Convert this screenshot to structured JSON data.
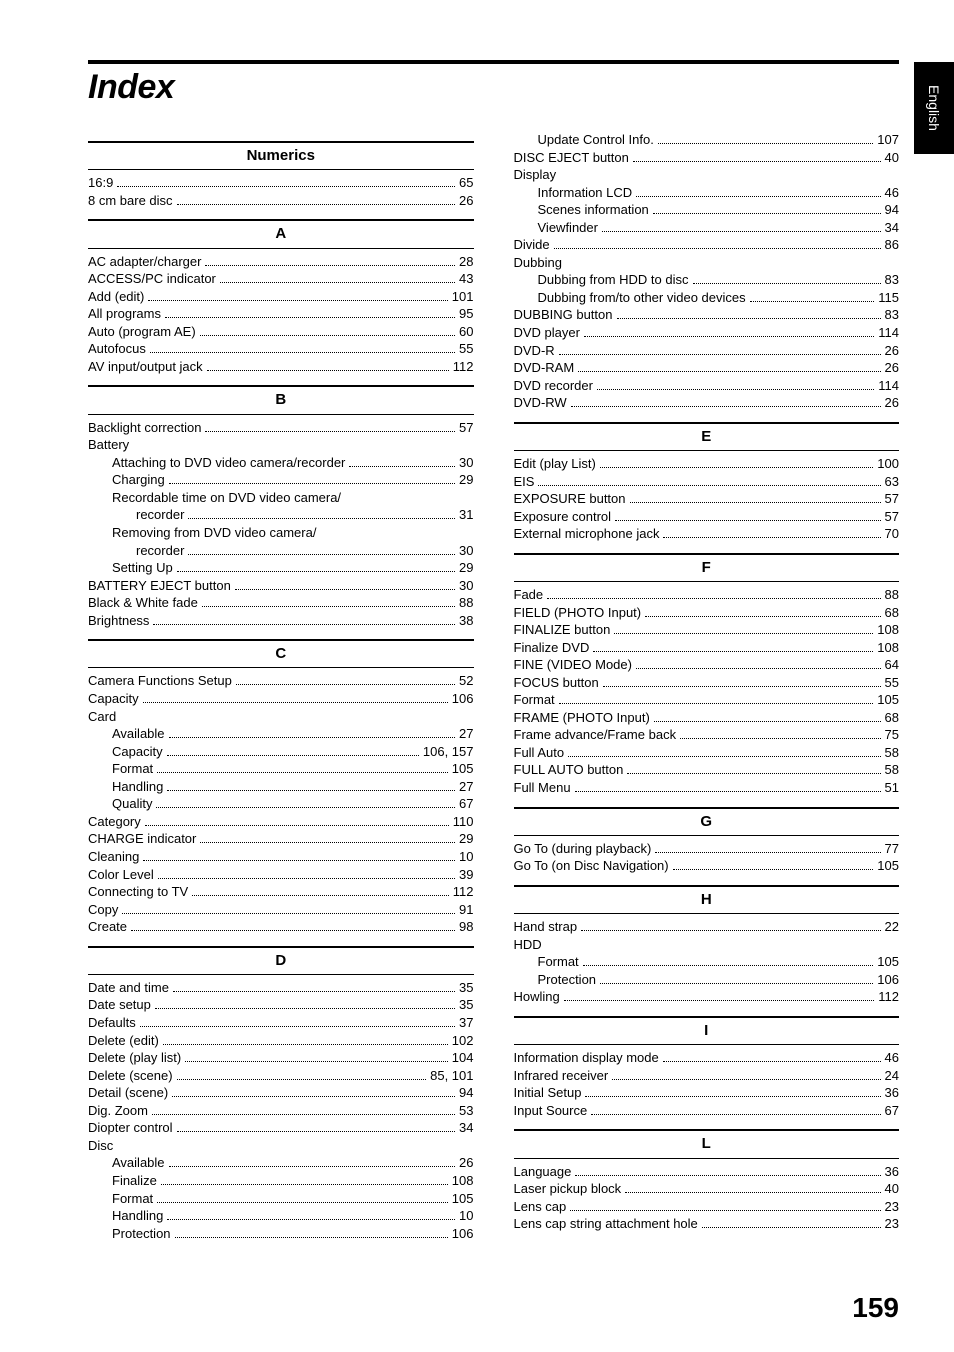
{
  "page": {
    "title": "Index",
    "side_tab": "English",
    "page_number": "159"
  },
  "left_sections": [
    {
      "letter": "Numerics",
      "items": [
        {
          "label": "16:9",
          "page": "65",
          "indent": 0
        },
        {
          "label": "8 cm bare disc",
          "page": "26",
          "indent": 0
        }
      ]
    },
    {
      "letter": "A",
      "items": [
        {
          "label": "AC adapter/charger",
          "page": "28",
          "indent": 0
        },
        {
          "label": "ACCESS/PC indicator",
          "page": "43",
          "indent": 0
        },
        {
          "label": "Add (edit)",
          "page": "101",
          "indent": 0
        },
        {
          "label": "All programs",
          "page": "95",
          "indent": 0
        },
        {
          "label": "Auto (program AE)",
          "page": "60",
          "indent": 0
        },
        {
          "label": "Autofocus",
          "page": "55",
          "indent": 0
        },
        {
          "label": "AV input/output jack",
          "page": "112",
          "indent": 0
        }
      ]
    },
    {
      "letter": "B",
      "items": [
        {
          "label": "Backlight correction",
          "page": "57",
          "indent": 0
        },
        {
          "label": "Battery",
          "page": "",
          "indent": 0,
          "heading": true
        },
        {
          "label": "Attaching to DVD video camera/recorder",
          "page": "30",
          "indent": 1
        },
        {
          "label": "Charging",
          "page": "29",
          "indent": 1
        },
        {
          "label": "Recordable time on DVD video camera/",
          "page": "",
          "indent": 1,
          "heading": true
        },
        {
          "label": "recorder",
          "page": "31",
          "indent": 2
        },
        {
          "label": "Removing from DVD video camera/",
          "page": "",
          "indent": 1,
          "heading": true
        },
        {
          "label": "recorder",
          "page": "30",
          "indent": 2
        },
        {
          "label": "Setting Up",
          "page": "29",
          "indent": 1
        },
        {
          "label": "BATTERY EJECT button",
          "page": "30",
          "indent": 0
        },
        {
          "label": "Black & White fade",
          "page": "88",
          "indent": 0
        },
        {
          "label": "Brightness",
          "page": "38",
          "indent": 0
        }
      ]
    },
    {
      "letter": "C",
      "items": [
        {
          "label": "Camera Functions Setup",
          "page": "52",
          "indent": 0
        },
        {
          "label": "Capacity",
          "page": "106",
          "indent": 0
        },
        {
          "label": "Card",
          "page": "",
          "indent": 0,
          "heading": true
        },
        {
          "label": "Available",
          "page": "27",
          "indent": 1
        },
        {
          "label": "Capacity",
          "page": "106, 157",
          "indent": 1
        },
        {
          "label": "Format",
          "page": "105",
          "indent": 1
        },
        {
          "label": "Handling",
          "page": "27",
          "indent": 1
        },
        {
          "label": "Quality",
          "page": "67",
          "indent": 1
        },
        {
          "label": "Category",
          "page": "110",
          "indent": 0
        },
        {
          "label": "CHARGE indicator",
          "page": "29",
          "indent": 0
        },
        {
          "label": "Cleaning",
          "page": "10",
          "indent": 0
        },
        {
          "label": "Color Level",
          "page": "39",
          "indent": 0
        },
        {
          "label": "Connecting to TV",
          "page": "112",
          "indent": 0
        },
        {
          "label": "Copy",
          "page": "91",
          "indent": 0
        },
        {
          "label": "Create",
          "page": "98",
          "indent": 0
        }
      ]
    },
    {
      "letter": "D",
      "items": [
        {
          "label": "Date and time",
          "page": "35",
          "indent": 0
        },
        {
          "label": "Date setup",
          "page": "35",
          "indent": 0
        },
        {
          "label": "Defaults",
          "page": "37",
          "indent": 0
        },
        {
          "label": "Delete (edit)",
          "page": "102",
          "indent": 0
        },
        {
          "label": "Delete (play list)",
          "page": "104",
          "indent": 0
        },
        {
          "label": "Delete (scene)",
          "page": "85, 101",
          "indent": 0
        },
        {
          "label": "Detail (scene)",
          "page": "94",
          "indent": 0
        },
        {
          "label": "Dig. Zoom",
          "page": "53",
          "indent": 0
        },
        {
          "label": "Diopter control",
          "page": "34",
          "indent": 0
        },
        {
          "label": "Disc",
          "page": "",
          "indent": 0,
          "heading": true
        },
        {
          "label": "Available",
          "page": "26",
          "indent": 1
        },
        {
          "label": "Finalize",
          "page": "108",
          "indent": 1
        },
        {
          "label": "Format",
          "page": "105",
          "indent": 1
        },
        {
          "label": "Handling",
          "page": "10",
          "indent": 1
        },
        {
          "label": "Protection",
          "page": "106",
          "indent": 1
        }
      ]
    }
  ],
  "right_sections": [
    {
      "letter": "",
      "items": [
        {
          "label": "Update Control Info.",
          "page": "107",
          "indent": 1
        },
        {
          "label": "DISC EJECT button",
          "page": "40",
          "indent": 0
        },
        {
          "label": "Display",
          "page": "",
          "indent": 0,
          "heading": true
        },
        {
          "label": "Information LCD",
          "page": "46",
          "indent": 1
        },
        {
          "label": "Scenes information",
          "page": "94",
          "indent": 1
        },
        {
          "label": "Viewfinder",
          "page": "34",
          "indent": 1
        },
        {
          "label": "Divide",
          "page": "86",
          "indent": 0
        },
        {
          "label": "Dubbing",
          "page": "",
          "indent": 0,
          "heading": true
        },
        {
          "label": "Dubbing from HDD to disc",
          "page": "83",
          "indent": 1
        },
        {
          "label": "Dubbing from/to other video devices",
          "page": "115",
          "indent": 1
        },
        {
          "label": "DUBBING button",
          "page": "83",
          "indent": 0
        },
        {
          "label": "DVD player",
          "page": "114",
          "indent": 0
        },
        {
          "label": "DVD-R",
          "page": "26",
          "indent": 0
        },
        {
          "label": "DVD-RAM",
          "page": "26",
          "indent": 0
        },
        {
          "label": "DVD recorder",
          "page": "114",
          "indent": 0
        },
        {
          "label": "DVD-RW",
          "page": "26",
          "indent": 0
        }
      ]
    },
    {
      "letter": "E",
      "items": [
        {
          "label": "Edit (play List)",
          "page": "100",
          "indent": 0
        },
        {
          "label": "EIS",
          "page": "63",
          "indent": 0
        },
        {
          "label": "EXPOSURE button",
          "page": "57",
          "indent": 0
        },
        {
          "label": "Exposure control",
          "page": "57",
          "indent": 0
        },
        {
          "label": "External microphone jack",
          "page": "70",
          "indent": 0
        }
      ]
    },
    {
      "letter": "F",
      "items": [
        {
          "label": "Fade",
          "page": "88",
          "indent": 0
        },
        {
          "label": "FIELD (PHOTO Input)",
          "page": "68",
          "indent": 0
        },
        {
          "label": "FINALIZE button",
          "page": "108",
          "indent": 0
        },
        {
          "label": "Finalize DVD",
          "page": "108",
          "indent": 0
        },
        {
          "label": "FINE (VIDEO Mode)",
          "page": "64",
          "indent": 0
        },
        {
          "label": "FOCUS button",
          "page": "55",
          "indent": 0
        },
        {
          "label": "Format",
          "page": "105",
          "indent": 0
        },
        {
          "label": "FRAME (PHOTO Input)",
          "page": "68",
          "indent": 0
        },
        {
          "label": "Frame advance/Frame back",
          "page": "75",
          "indent": 0
        },
        {
          "label": "Full Auto",
          "page": "58",
          "indent": 0
        },
        {
          "label": "FULL AUTO button",
          "page": "58",
          "indent": 0
        },
        {
          "label": "Full Menu",
          "page": "51",
          "indent": 0
        }
      ]
    },
    {
      "letter": "G",
      "items": [
        {
          "label": "Go To (during playback)",
          "page": "77",
          "indent": 0
        },
        {
          "label": "Go To (on Disc Navigation)",
          "page": "105",
          "indent": 0
        }
      ]
    },
    {
      "letter": "H",
      "items": [
        {
          "label": "Hand strap",
          "page": "22",
          "indent": 0
        },
        {
          "label": "HDD",
          "page": "",
          "indent": 0,
          "heading": true
        },
        {
          "label": "Format",
          "page": "105",
          "indent": 1
        },
        {
          "label": "Protection",
          "page": "106",
          "indent": 1
        },
        {
          "label": "Howling",
          "page": "112",
          "indent": 0
        }
      ]
    },
    {
      "letter": "I",
      "items": [
        {
          "label": "Information display mode",
          "page": "46",
          "indent": 0
        },
        {
          "label": "Infrared receiver",
          "page": "24",
          "indent": 0
        },
        {
          "label": "Initial Setup",
          "page": "36",
          "indent": 0
        },
        {
          "label": "Input Source",
          "page": "67",
          "indent": 0
        }
      ]
    },
    {
      "letter": "L",
      "items": [
        {
          "label": "Language",
          "page": "36",
          "indent": 0
        },
        {
          "label": "Laser pickup block",
          "page": "40",
          "indent": 0
        },
        {
          "label": "Lens cap",
          "page": "23",
          "indent": 0
        },
        {
          "label": "Lens cap string attachment hole",
          "page": "23",
          "indent": 0
        }
      ]
    }
  ]
}
